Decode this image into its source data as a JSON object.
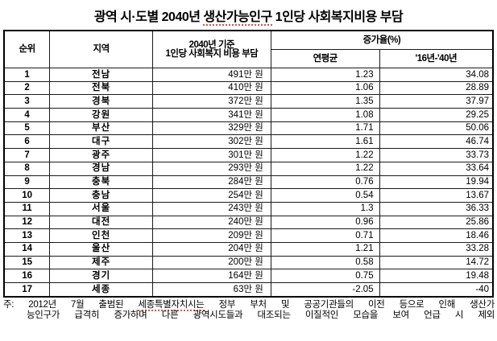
{
  "title": {
    "pre": "광역 시·도별 2040년 ",
    "marked": "생산가능인구",
    "post": " 1인당 사회복지비용 부담"
  },
  "colors": {
    "border": "#000000",
    "text": "#000000",
    "spellcheck_underline": "#dd5247",
    "background": "#ffffff"
  },
  "table": {
    "headers": {
      "rank": "순위",
      "region": "지역",
      "cost_line1": "2040년 기준",
      "cost_line2": "1인당 사회복지 비용 부담",
      "growth_group": "증가율(%)",
      "growth_annual": "연평균",
      "growth_period": "'16년-'40년"
    },
    "rows": [
      {
        "rank": "1",
        "region": "전남",
        "cost": "491만 원",
        "annual": "1.23",
        "period": "34.08"
      },
      {
        "rank": "2",
        "region": "전북",
        "cost": "410만 원",
        "annual": "1.06",
        "period": "28.89"
      },
      {
        "rank": "3",
        "region": "경북",
        "cost": "372만 원",
        "annual": "1.35",
        "period": "37.97"
      },
      {
        "rank": "4",
        "region": "강원",
        "cost": "341만 원",
        "annual": "1.08",
        "period": "29.25"
      },
      {
        "rank": "5",
        "region": "부산",
        "cost": "329만 원",
        "annual": "1.71",
        "period": "50.06"
      },
      {
        "rank": "6",
        "region": "대구",
        "cost": "302만 원",
        "annual": "1.61",
        "period": "46.74"
      },
      {
        "rank": "7",
        "region": "광주",
        "cost": "301만 원",
        "annual": "1.22",
        "period": "33.73"
      },
      {
        "rank": "8",
        "region": "경남",
        "cost": "293만 원",
        "annual": "1.22",
        "period": "33.64"
      },
      {
        "rank": "9",
        "region": "충북",
        "cost": "284만 원",
        "annual": "0.76",
        "period": "19.94"
      },
      {
        "rank": "10",
        "region": "충남",
        "cost": "254만 원",
        "annual": "0.54",
        "period": "13.67"
      },
      {
        "rank": "11",
        "region": "서울",
        "cost": "243만 원",
        "annual": "1.3",
        "period": "36.33"
      },
      {
        "rank": "12",
        "region": "대전",
        "cost": "240만 원",
        "annual": "0.96",
        "period": "25.86"
      },
      {
        "rank": "13",
        "region": "인천",
        "cost": "209만 원",
        "annual": "0.71",
        "period": "18.46"
      },
      {
        "rank": "14",
        "region": "울산",
        "cost": "204만 원",
        "annual": "1.21",
        "period": "33.28"
      },
      {
        "rank": "15",
        "region": "제주",
        "cost": "200만 원",
        "annual": "0.58",
        "period": "14.72"
      },
      {
        "rank": "16",
        "region": "경기",
        "cost": "164만 원",
        "annual": "0.75",
        "period": "19.48"
      },
      {
        "rank": "17",
        "region": "세종",
        "cost": "63만 원",
        "annual": "-2.05",
        "period": "-40"
      }
    ]
  },
  "footnote": {
    "line1_pre": "주: 2012년 7월 출범된 ",
    "line1_marked": "세종특별자치시는",
    "line1_post": " 정부 부처 및 공공기관들의 이전 등으로 인해 생산가",
    "line2": "능인구가 급격히 증가하며 다른 광역시도들과 대조되는 이질적인 모습을 보여 언급 시 제외"
  }
}
